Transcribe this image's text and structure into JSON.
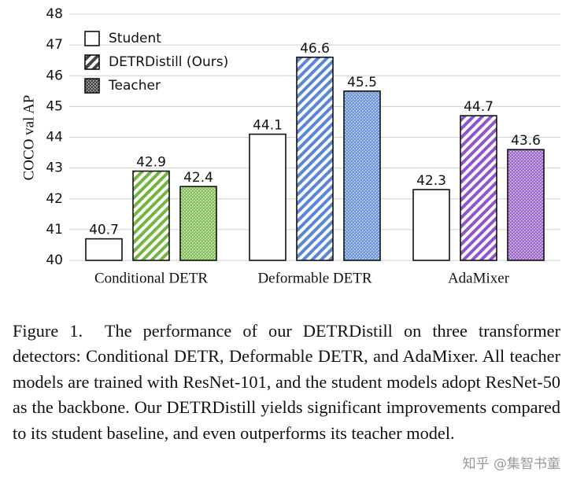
{
  "chart_data": {
    "type": "bar",
    "ylabel": "COCO val AP",
    "categories": [
      "Conditional DETR",
      "Deformable DETR",
      "AdaMixer"
    ],
    "series": [
      {
        "name": "Student",
        "pattern": "none",
        "colors": [
          "#ffffff",
          "#ffffff",
          "#ffffff"
        ],
        "values": [
          40.7,
          44.1,
          42.3
        ]
      },
      {
        "name": "DETRDistill (Ours)",
        "pattern": "hatch",
        "colors": [
          "#72b640",
          "#5a86d8",
          "#9254cc"
        ],
        "values": [
          42.9,
          46.6,
          44.7
        ]
      },
      {
        "name": "Teacher",
        "pattern": "dots",
        "colors": [
          "#86c25a",
          "#6d94dd",
          "#9c66d0"
        ],
        "values": [
          42.4,
          45.5,
          43.6
        ]
      }
    ],
    "legend_color": "#444444",
    "legend": "upper left",
    "ylim": [
      40,
      48
    ],
    "yticks": [
      40,
      41,
      42,
      43,
      44,
      45,
      46,
      47,
      48
    ],
    "grid": true
  },
  "caption": {
    "label": "Figure 1.",
    "text": "The performance of our DETRDistill on three transformer detectors: Conditional DETR, Deformable DETR, and AdaMixer. All teacher models are trained with ResNet-101, and the student models adopt ResNet-50 as the backbone. Our DETRDistill yields significant improvements compared to its student baseline, and even outperforms its teacher model."
  },
  "watermark": "知乎 @集智书童"
}
